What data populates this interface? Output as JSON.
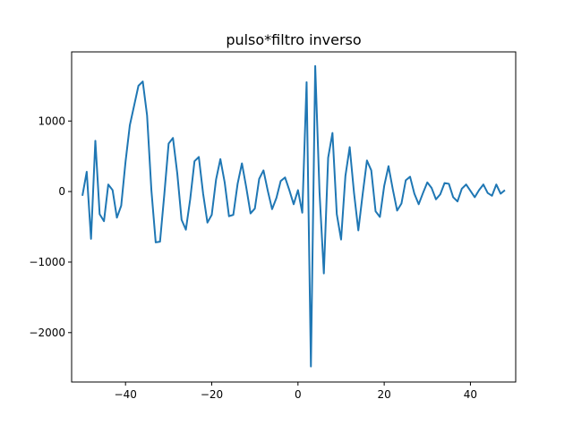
{
  "chart_data": {
    "type": "line",
    "title": "pulso*filtro inverso",
    "xlabel": "",
    "ylabel": "",
    "xlim": [
      -52.5,
      50.5
    ],
    "ylim": [
      -2700,
      1980
    ],
    "x_ticks": [
      -40,
      -20,
      0,
      20,
      40
    ],
    "y_ticks": [
      -2000,
      -1000,
      0,
      1000
    ],
    "x_tick_labels": [
      "−40",
      "−20",
      "0",
      "20",
      "40"
    ],
    "y_tick_labels": [
      "−2000",
      "−1000",
      "0",
      "1000"
    ],
    "grid": false,
    "legend": "none",
    "series": [
      {
        "color": "#1f77b4",
        "x": [
          -50,
          -49,
          -48,
          -47,
          -46,
          -45,
          -44,
          -43,
          -42,
          -41,
          -40,
          -39,
          -38,
          -37,
          -36,
          -35,
          -34,
          -33,
          -32,
          -31,
          -30,
          -29,
          -28,
          -27,
          -26,
          -25,
          -24,
          -23,
          -22,
          -21,
          -20,
          -19,
          -18,
          -17,
          -16,
          -15,
          -14,
          -13,
          -12,
          -11,
          -10,
          -9,
          -8,
          -7,
          -6,
          -5,
          -4,
          -3,
          -2,
          -1,
          0,
          1,
          2,
          3,
          4,
          5,
          6,
          7,
          8,
          9,
          10,
          11,
          12,
          13,
          14,
          15,
          16,
          17,
          18,
          19,
          20,
          21,
          22,
          23,
          24,
          25,
          26,
          27,
          28,
          29,
          30,
          31,
          32,
          33,
          34,
          35,
          36,
          37,
          38,
          39,
          40,
          41,
          42,
          43,
          44,
          45,
          46,
          47,
          48
        ],
        "y": [
          -60,
          280,
          -670,
          720,
          -320,
          -420,
          100,
          20,
          -370,
          -200,
          420,
          940,
          1220,
          1500,
          1560,
          1080,
          20,
          -720,
          -710,
          -40,
          680,
          760,
          260,
          -400,
          -540,
          -110,
          430,
          490,
          -30,
          -440,
          -330,
          170,
          460,
          130,
          -350,
          -330,
          110,
          400,
          60,
          -310,
          -240,
          180,
          300,
          10,
          -250,
          -90,
          150,
          200,
          20,
          -180,
          20,
          -300,
          1550,
          -2480,
          1780,
          -10,
          -1160,
          480,
          830,
          -320,
          -680,
          220,
          630,
          -20,
          -550,
          -40,
          440,
          300,
          -280,
          -360,
          80,
          360,
          30,
          -270,
          -170,
          160,
          210,
          -30,
          -180,
          -20,
          130,
          50,
          -110,
          -40,
          120,
          110,
          -80,
          -140,
          40,
          100,
          10,
          -80,
          20,
          100,
          -20,
          -60,
          100,
          -30,
          20
        ]
      }
    ]
  }
}
